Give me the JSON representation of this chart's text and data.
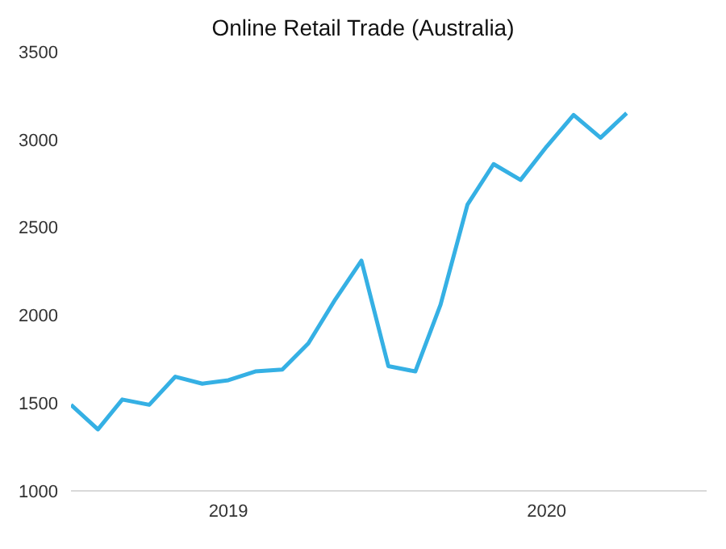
{
  "chart_data": {
    "type": "line",
    "title": "Online Retail Trade (Australia)",
    "x": [
      "2019-01",
      "2019-02",
      "2019-03",
      "2019-04",
      "2019-05",
      "2019-06",
      "2019-07",
      "2019-08",
      "2019-09",
      "2019-10",
      "2019-11",
      "2019-12",
      "2020-01",
      "2020-02",
      "2020-03",
      "2020-04",
      "2020-05",
      "2020-06",
      "2020-07",
      "2020-08",
      "2020-09",
      "2020-10"
    ],
    "series": [
      {
        "color": "#35b0e4",
        "values": [
          1490,
          1350,
          1520,
          1490,
          1650,
          1610,
          1630,
          1680,
          1690,
          1840,
          2090,
          2310,
          1710,
          1680,
          2060,
          2630,
          2860,
          2770,
          2960,
          3140,
          3010,
          3150
        ]
      }
    ],
    "xlim": [
      "2019-01",
      "2021-01"
    ],
    "xticks": [
      {
        "value": "2019-07",
        "label": "2019"
      },
      {
        "value": "2020-07",
        "label": "2020"
      }
    ],
    "ylim": [
      1000,
      3500
    ],
    "yticks": [
      1000,
      1500,
      2000,
      2500,
      3000,
      3500
    ],
    "grid": false,
    "legend": false,
    "marker": "none",
    "line_style": "solid"
  }
}
